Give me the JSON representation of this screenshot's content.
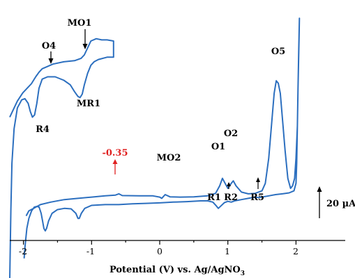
{
  "chart_data": {
    "type": "line",
    "xlabel_main": "Potential (V) vs. Ag/AgNO",
    "xlabel_sub": "3",
    "xticks": [
      "-2",
      "-1",
      "0",
      "1",
      "2"
    ],
    "xlim": [
      -2.2,
      2.5
    ],
    "scale_bar_label": "20 µA",
    "colors": {
      "trace": "#2c6fbf",
      "marker_red": "#e02020",
      "text": "#000000"
    },
    "peak_labels": {
      "O1": "O1",
      "O2": "O2",
      "O5": "O5",
      "MO2": "MO2",
      "R1": "R1",
      "R2": "R2",
      "R5": "R5",
      "O4": "O4",
      "MO1": "MO1",
      "MR1": "MR1",
      "R4": "R4"
    },
    "red_marker_label": "-0.35",
    "main_trace": [
      [
        -1.99,
        -8
      ],
      [
        -1.98,
        -4
      ],
      [
        -1.95,
        4
      ],
      [
        -1.92,
        8
      ],
      [
        -1.88,
        11
      ],
      [
        -1.84,
        12.5
      ],
      [
        -1.8,
        12.8
      ],
      [
        -1.77,
        12.5
      ],
      [
        -1.74,
        10
      ],
      [
        -1.72,
        7
      ],
      [
        -1.7,
        4
      ],
      [
        -1.68,
        3
      ],
      [
        -1.66,
        4
      ],
      [
        -1.63,
        7
      ],
      [
        -1.58,
        10
      ],
      [
        -1.5,
        11.5
      ],
      [
        -1.4,
        12
      ],
      [
        -1.3,
        11.8
      ],
      [
        -1.23,
        10
      ],
      [
        -1.2,
        8
      ],
      [
        -1.18,
        8
      ],
      [
        -1.15,
        10
      ],
      [
        -1.1,
        12
      ],
      [
        -1.0,
        13.2
      ],
      [
        -0.8,
        13.5
      ],
      [
        -0.6,
        13.5
      ],
      [
        -0.4,
        13.8
      ],
      [
        -0.2,
        14
      ],
      [
        0,
        14.2
      ],
      [
        0.2,
        14.5
      ],
      [
        0.4,
        14.7
      ],
      [
        0.6,
        15
      ],
      [
        0.7,
        15
      ],
      [
        0.78,
        14.5
      ],
      [
        0.83,
        13
      ],
      [
        0.86,
        12
      ],
      [
        0.9,
        13
      ],
      [
        0.95,
        14.3
      ],
      [
        1.0,
        14.8
      ],
      [
        1.05,
        14.5
      ],
      [
        1.1,
        15
      ],
      [
        1.2,
        15.5
      ],
      [
        1.3,
        16
      ],
      [
        1.4,
        16.5
      ],
      [
        1.45,
        16.3
      ],
      [
        1.5,
        16.5
      ],
      [
        1.6,
        17
      ],
      [
        1.7,
        17.5
      ],
      [
        1.8,
        17.8
      ],
      [
        1.9,
        18.2
      ],
      [
        1.97,
        19
      ],
      [
        2.0,
        22
      ],
      [
        2.01,
        30
      ],
      [
        2.02,
        45
      ],
      [
        2.03,
        60
      ],
      [
        2.04,
        75
      ],
      [
        2.05,
        88
      ],
      [
        2.045,
        80
      ],
      [
        2.03,
        60
      ],
      [
        2.02,
        45
      ],
      [
        2.0,
        32
      ],
      [
        1.98,
        24
      ],
      [
        1.95,
        21
      ],
      [
        1.92,
        20
      ],
      [
        1.88,
        24
      ],
      [
        1.84,
        35
      ],
      [
        1.8,
        48
      ],
      [
        1.77,
        58
      ],
      [
        1.74,
        62
      ],
      [
        1.71,
        63
      ],
      [
        1.68,
        58
      ],
      [
        1.64,
        45
      ],
      [
        1.6,
        32
      ],
      [
        1.55,
        22
      ],
      [
        1.5,
        19
      ],
      [
        1.4,
        18
      ],
      [
        1.3,
        17.8
      ],
      [
        1.2,
        18.5
      ],
      [
        1.12,
        21
      ],
      [
        1.08,
        23
      ],
      [
        1.05,
        22
      ],
      [
        1.0,
        20
      ],
      [
        0.96,
        22
      ],
      [
        0.92,
        24
      ],
      [
        0.88,
        21
      ],
      [
        0.82,
        18
      ],
      [
        0.7,
        17
      ],
      [
        0.5,
        16.6
      ],
      [
        0.3,
        16.5
      ],
      [
        0.15,
        16.6
      ],
      [
        0.08,
        17.5
      ],
      [
        0.03,
        16
      ],
      [
        0.0,
        16.5
      ],
      [
        -0.1,
        17
      ],
      [
        -0.3,
        17
      ],
      [
        -0.55,
        17.1
      ],
      [
        -0.6,
        17.8
      ],
      [
        -0.65,
        17.3
      ],
      [
        -0.8,
        17
      ],
      [
        -1.0,
        16.5
      ],
      [
        -1.2,
        16
      ],
      [
        -1.4,
        15.5
      ],
      [
        -1.6,
        14.5
      ],
      [
        -1.75,
        13.5
      ],
      [
        -1.85,
        12
      ],
      [
        -1.92,
        11
      ],
      [
        -1.96,
        9
      ]
    ],
    "inset_trace": [
      [
        -1.8,
        -10
      ],
      [
        -1.79,
        -4
      ],
      [
        -1.78,
        0
      ],
      [
        -1.76,
        3
      ],
      [
        -1.73,
        4.8
      ],
      [
        -1.69,
        5.5
      ],
      [
        -1.66,
        5.6
      ],
      [
        -1.63,
        5.2
      ],
      [
        -1.61,
        4.5
      ],
      [
        -1.59,
        4
      ],
      [
        -1.57,
        4.2
      ],
      [
        -1.55,
        5.2
      ],
      [
        -1.53,
        6.5
      ],
      [
        -1.5,
        7.3
      ],
      [
        -1.45,
        7.5
      ],
      [
        -1.38,
        7.5
      ],
      [
        -1.3,
        7.2
      ],
      [
        -1.24,
        6.8
      ],
      [
        -1.2,
        6.2
      ],
      [
        -1.17,
        5.8
      ],
      [
        -1.15,
        5.7
      ],
      [
        -1.13,
        6
      ],
      [
        -1.11,
        6.8
      ],
      [
        -1.08,
        7.8
      ],
      [
        -1.05,
        8.5
      ],
      [
        -1.02,
        8.8
      ],
      [
        -0.98,
        9
      ],
      [
        -0.9,
        9.2
      ],
      [
        -0.84,
        9.2
      ],
      [
        -0.84,
        10.6
      ],
      [
        -0.9,
        10.7
      ],
      [
        -0.95,
        10.7
      ],
      [
        -1.0,
        10.8
      ],
      [
        -1.05,
        10.6
      ],
      [
        -1.08,
        10
      ],
      [
        -1.11,
        9.4
      ],
      [
        -1.14,
        9.1
      ],
      [
        -1.2,
        8.9
      ],
      [
        -1.3,
        8.8
      ],
      [
        -1.4,
        8.6
      ],
      [
        -1.45,
        8.4
      ],
      [
        -1.5,
        8.2
      ],
      [
        -1.53,
        7.9
      ],
      [
        -1.56,
        7.5
      ],
      [
        -1.6,
        6.9
      ],
      [
        -1.64,
        6.5
      ],
      [
        -1.68,
        6.1
      ],
      [
        -1.73,
        5.4
      ],
      [
        -1.77,
        4.6
      ],
      [
        -1.8,
        4
      ]
    ]
  }
}
